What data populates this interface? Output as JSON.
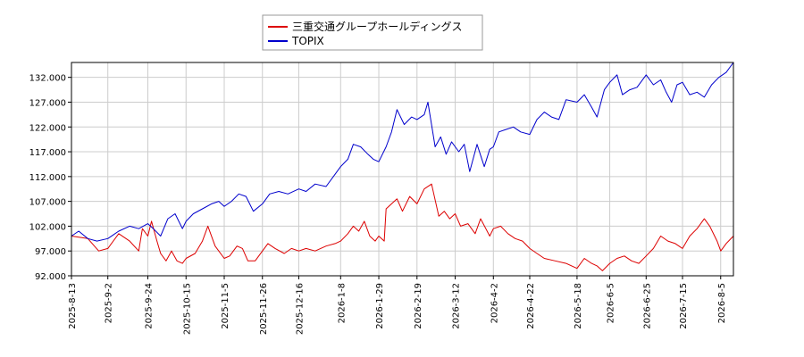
{
  "chart_data": {
    "type": "line",
    "title": "",
    "xlabel": "",
    "ylabel": "",
    "ylim": [
      92.0,
      135.0
    ],
    "y_ticks": [
      "92.000",
      "97.000",
      "102.000",
      "107.000",
      "112.000",
      "117.000",
      "122.000",
      "127.000",
      "132.000"
    ],
    "x_range": [
      "2025-08-13",
      "2026-08-12"
    ],
    "x_ticks": [
      "2025-8-13",
      "2025-9-2",
      "2025-9-24",
      "2025-10-15",
      "2025-11-5",
      "2025-11-26",
      "2025-12-16",
      "2026-1-8",
      "2026-1-29",
      "2026-2-19",
      "2026-3-12",
      "2026-4-2",
      "2026-4-22",
      "2026-5-18",
      "2026-6-5",
      "2026-6-25",
      "2026-7-15",
      "2026-8-5"
    ],
    "grid": true,
    "legend_position": "top-center",
    "series": [
      {
        "name": "三重交通グループホールディングス",
        "color": "#dd0000",
        "points": [
          [
            "2025-08-13",
            100.0
          ],
          [
            "2025-08-22",
            99.5
          ],
          [
            "2025-08-28",
            97.0
          ],
          [
            "2025-09-02",
            97.5
          ],
          [
            "2025-09-08",
            100.5
          ],
          [
            "2025-09-14",
            99.0
          ],
          [
            "2025-09-19",
            97.0
          ],
          [
            "2025-09-21",
            101.5
          ],
          [
            "2025-09-24",
            100.0
          ],
          [
            "2025-09-26",
            103.0
          ],
          [
            "2025-09-29",
            99.0
          ],
          [
            "2025-10-01",
            96.5
          ],
          [
            "2025-10-04",
            95.0
          ],
          [
            "2025-10-07",
            97.0
          ],
          [
            "2025-10-10",
            95.0
          ],
          [
            "2025-10-13",
            94.5
          ],
          [
            "2025-10-15",
            95.5
          ],
          [
            "2025-10-20",
            96.5
          ],
          [
            "2025-10-24",
            99.0
          ],
          [
            "2025-10-27",
            102.0
          ],
          [
            "2025-10-31",
            98.0
          ],
          [
            "2025-11-05",
            95.5
          ],
          [
            "2025-11-08",
            96.0
          ],
          [
            "2025-11-12",
            98.0
          ],
          [
            "2025-11-15",
            97.5
          ],
          [
            "2025-11-18",
            95.0
          ],
          [
            "2025-11-22",
            95.0
          ],
          [
            "2025-11-26",
            97.0
          ],
          [
            "2025-11-29",
            98.5
          ],
          [
            "2025-12-03",
            97.5
          ],
          [
            "2025-12-08",
            96.5
          ],
          [
            "2025-12-12",
            97.5
          ],
          [
            "2025-12-16",
            97.0
          ],
          [
            "2025-12-20",
            97.5
          ],
          [
            "2025-12-25",
            97.0
          ],
          [
            "2025-12-31",
            98.0
          ],
          [
            "2026-01-05",
            98.5
          ],
          [
            "2026-01-08",
            99.0
          ],
          [
            "2026-01-12",
            100.5
          ],
          [
            "2026-01-15",
            102.0
          ],
          [
            "2026-01-18",
            101.0
          ],
          [
            "2026-01-21",
            103.0
          ],
          [
            "2026-01-24",
            100.0
          ],
          [
            "2026-01-27",
            99.0
          ],
          [
            "2026-01-29",
            100.0
          ],
          [
            "2026-02-01",
            99.0
          ],
          [
            "2026-02-02",
            105.5
          ],
          [
            "2026-02-05",
            106.5
          ],
          [
            "2026-02-08",
            107.5
          ],
          [
            "2026-02-11",
            105.0
          ],
          [
            "2026-02-15",
            108.0
          ],
          [
            "2026-02-19",
            106.5
          ],
          [
            "2026-02-23",
            109.5
          ],
          [
            "2026-02-27",
            110.5
          ],
          [
            "2026-03-03",
            104.0
          ],
          [
            "2026-03-06",
            105.0
          ],
          [
            "2026-03-09",
            103.5
          ],
          [
            "2026-03-12",
            104.5
          ],
          [
            "2026-03-15",
            102.0
          ],
          [
            "2026-03-19",
            102.5
          ],
          [
            "2026-03-23",
            100.5
          ],
          [
            "2026-03-26",
            103.5
          ],
          [
            "2026-03-31",
            100.0
          ],
          [
            "2026-04-02",
            101.5
          ],
          [
            "2026-04-06",
            102.0
          ],
          [
            "2026-04-10",
            100.5
          ],
          [
            "2026-04-14",
            99.5
          ],
          [
            "2026-04-18",
            99.0
          ],
          [
            "2026-04-22",
            97.5
          ],
          [
            "2026-04-26",
            96.5
          ],
          [
            "2026-04-30",
            95.5
          ],
          [
            "2026-05-06",
            95.0
          ],
          [
            "2026-05-12",
            94.5
          ],
          [
            "2026-05-18",
            93.5
          ],
          [
            "2026-05-22",
            95.5
          ],
          [
            "2026-05-26",
            94.5
          ],
          [
            "2026-05-29",
            94.0
          ],
          [
            "2026-06-01",
            93.0
          ],
          [
            "2026-06-05",
            94.5
          ],
          [
            "2026-06-09",
            95.5
          ],
          [
            "2026-06-13",
            96.0
          ],
          [
            "2026-06-17",
            95.0
          ],
          [
            "2026-06-21",
            94.5
          ],
          [
            "2026-06-25",
            96.0
          ],
          [
            "2026-06-29",
            97.5
          ],
          [
            "2026-07-03",
            100.0
          ],
          [
            "2026-07-07",
            99.0
          ],
          [
            "2026-07-11",
            98.5
          ],
          [
            "2026-07-15",
            97.5
          ],
          [
            "2026-07-19",
            100.0
          ],
          [
            "2026-07-23",
            101.5
          ],
          [
            "2026-07-27",
            103.5
          ],
          [
            "2026-07-30",
            102.0
          ],
          [
            "2026-08-03",
            99.0
          ],
          [
            "2026-08-05",
            97.0
          ],
          [
            "2026-08-08",
            98.5
          ],
          [
            "2026-08-12",
            100.0
          ]
        ]
      },
      {
        "name": "TOPIX",
        "color": "#0000cc",
        "points": [
          [
            "2025-08-13",
            100.0
          ],
          [
            "2025-08-17",
            101.0
          ],
          [
            "2025-08-22",
            99.5
          ],
          [
            "2025-08-27",
            99.0
          ],
          [
            "2025-09-02",
            99.5
          ],
          [
            "2025-09-08",
            101.0
          ],
          [
            "2025-09-14",
            102.0
          ],
          [
            "2025-09-19",
            101.5
          ],
          [
            "2025-09-24",
            102.5
          ],
          [
            "2025-09-27",
            101.5
          ],
          [
            "2025-10-01",
            100.0
          ],
          [
            "2025-10-05",
            103.5
          ],
          [
            "2025-10-09",
            104.5
          ],
          [
            "2025-10-13",
            101.5
          ],
          [
            "2025-10-15",
            103.0
          ],
          [
            "2025-10-19",
            104.5
          ],
          [
            "2025-10-24",
            105.5
          ],
          [
            "2025-10-29",
            106.5
          ],
          [
            "2025-11-02",
            107.0
          ],
          [
            "2025-11-05",
            106.0
          ],
          [
            "2025-11-09",
            107.0
          ],
          [
            "2025-11-13",
            108.5
          ],
          [
            "2025-11-17",
            108.0
          ],
          [
            "2025-11-21",
            105.0
          ],
          [
            "2025-11-26",
            106.5
          ],
          [
            "2025-11-30",
            108.5
          ],
          [
            "2025-12-05",
            109.0
          ],
          [
            "2025-12-10",
            108.5
          ],
          [
            "2025-12-16",
            109.5
          ],
          [
            "2025-12-20",
            109.0
          ],
          [
            "2025-12-25",
            110.5
          ],
          [
            "2025-12-31",
            110.0
          ],
          [
            "2026-01-05",
            112.5
          ],
          [
            "2026-01-08",
            114.0
          ],
          [
            "2026-01-12",
            115.5
          ],
          [
            "2026-01-15",
            118.5
          ],
          [
            "2026-01-19",
            118.0
          ],
          [
            "2026-01-23",
            116.5
          ],
          [
            "2026-01-26",
            115.5
          ],
          [
            "2026-01-29",
            115.0
          ],
          [
            "2026-02-02",
            118.0
          ],
          [
            "2026-02-05",
            121.0
          ],
          [
            "2026-02-08",
            125.5
          ],
          [
            "2026-02-12",
            122.5
          ],
          [
            "2026-02-16",
            124.0
          ],
          [
            "2026-02-19",
            123.5
          ],
          [
            "2026-02-23",
            124.5
          ],
          [
            "2026-02-25",
            127.0
          ],
          [
            "2026-03-01",
            118.0
          ],
          [
            "2026-03-04",
            120.0
          ],
          [
            "2026-03-07",
            116.5
          ],
          [
            "2026-03-10",
            119.0
          ],
          [
            "2026-03-14",
            117.0
          ],
          [
            "2026-03-17",
            118.5
          ],
          [
            "2026-03-20",
            113.0
          ],
          [
            "2026-03-24",
            118.5
          ],
          [
            "2026-03-28",
            114.0
          ],
          [
            "2026-03-31",
            117.5
          ],
          [
            "2026-04-02",
            118.0
          ],
          [
            "2026-04-05",
            121.0
          ],
          [
            "2026-04-09",
            121.5
          ],
          [
            "2026-04-13",
            122.0
          ],
          [
            "2026-04-17",
            121.0
          ],
          [
            "2026-04-22",
            120.5
          ],
          [
            "2026-04-26",
            123.5
          ],
          [
            "2026-04-30",
            125.0
          ],
          [
            "2026-05-04",
            124.0
          ],
          [
            "2026-05-08",
            123.5
          ],
          [
            "2026-05-12",
            127.5
          ],
          [
            "2026-05-18",
            127.0
          ],
          [
            "2026-05-22",
            128.5
          ],
          [
            "2026-05-26",
            126.0
          ],
          [
            "2026-05-29",
            124.0
          ],
          [
            "2026-06-02",
            129.5
          ],
          [
            "2026-06-05",
            131.0
          ],
          [
            "2026-06-09",
            132.5
          ],
          [
            "2026-06-12",
            128.5
          ],
          [
            "2026-06-16",
            129.5
          ],
          [
            "2026-06-20",
            130.0
          ],
          [
            "2026-06-25",
            132.5
          ],
          [
            "2026-06-29",
            130.5
          ],
          [
            "2026-07-03",
            131.5
          ],
          [
            "2026-07-06",
            129.0
          ],
          [
            "2026-07-09",
            127.0
          ],
          [
            "2026-07-12",
            130.5
          ],
          [
            "2026-07-15",
            131.0
          ],
          [
            "2026-07-19",
            128.5
          ],
          [
            "2026-07-23",
            129.0
          ],
          [
            "2026-07-27",
            128.0
          ],
          [
            "2026-07-31",
            130.5
          ],
          [
            "2026-08-04",
            132.0
          ],
          [
            "2026-08-08",
            133.0
          ],
          [
            "2026-08-12",
            135.0
          ]
        ]
      }
    ]
  }
}
